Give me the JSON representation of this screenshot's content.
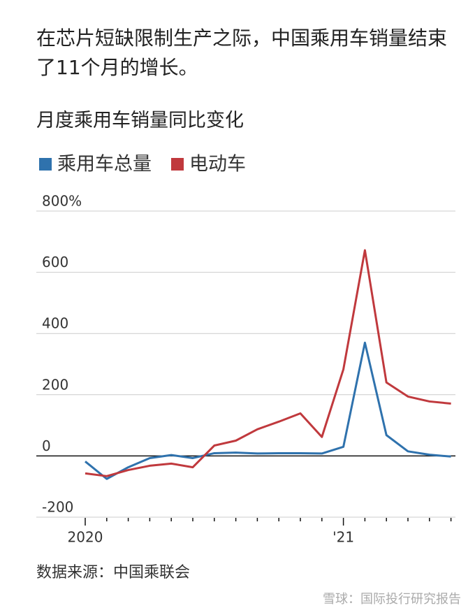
{
  "chart_data": {
    "type": "line",
    "title": "在芯片短缺限制生产之际，中国乘用车销量结束了11个月的增长。",
    "subtitle": "月度乘用车销量同比变化",
    "source": "数据来源：中国乘联会",
    "watermark": "雪球：国际投行研究报告",
    "categories": [
      "2020",
      null,
      null,
      null,
      null,
      null,
      null,
      null,
      null,
      null,
      null,
      null,
      "'21",
      null,
      null,
      null,
      null,
      null
    ],
    "series": [
      {
        "name": "乘用车总量",
        "color": "#2f72ad",
        "values": [
          -18,
          -75,
          -37,
          -7,
          3,
          -7,
          9,
          11,
          8,
          9,
          9,
          8,
          30,
          370,
          68,
          15,
          4,
          -2
        ]
      },
      {
        "name": "电动车",
        "color": "#c0393d",
        "values": [
          -57,
          -66,
          -46,
          -32,
          -25,
          -37,
          34,
          50,
          87,
          112,
          139,
          62,
          283,
          672,
          240,
          194,
          178,
          171
        ]
      }
    ],
    "ylim": [
      -200,
      800
    ],
    "yticks": [
      -200,
      0,
      200,
      400,
      600,
      {
        "value": 800,
        "label": "800%"
      }
    ],
    "grid": true
  }
}
